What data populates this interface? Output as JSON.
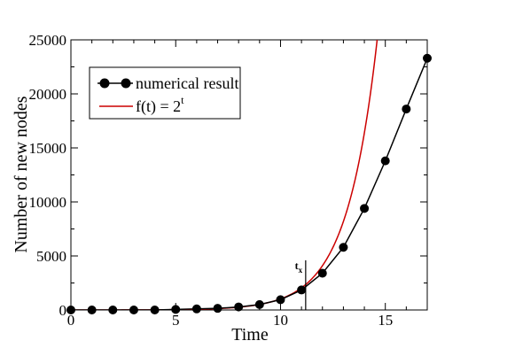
{
  "chart_data": {
    "type": "line",
    "xlabel": "Time",
    "ylabel": "Number of new nodes",
    "xlim": [
      0,
      17
    ],
    "ylim": [
      0,
      25000
    ],
    "xticks": [
      0,
      5,
      10,
      15
    ],
    "yticks": [
      0,
      5000,
      10000,
      15000,
      20000,
      25000
    ],
    "grid": false,
    "legend_position": "top-left",
    "series": [
      {
        "name": "numerical result",
        "style": "line-with-markers",
        "color": "#000000",
        "x": [
          0,
          1,
          2,
          3,
          4,
          5,
          6,
          7,
          8,
          9,
          10,
          11,
          12,
          13,
          14,
          15,
          16,
          17
        ],
        "y": [
          0,
          0,
          0,
          0,
          0,
          50,
          100,
          150,
          280,
          500,
          950,
          1850,
          3400,
          5800,
          9400,
          13800,
          18600,
          23300
        ]
      },
      {
        "name_prefix": "f(t) = 2",
        "name_superscript": "t",
        "style": "line",
        "color": "#cc0000",
        "function": "2^t",
        "x_range": [
          0,
          14.62
        ]
      }
    ],
    "annotations": [
      {
        "text": "t",
        "subscript": "x",
        "x": 11.2,
        "type": "vertical-line",
        "y_range": [
          0,
          4600
        ]
      }
    ]
  }
}
